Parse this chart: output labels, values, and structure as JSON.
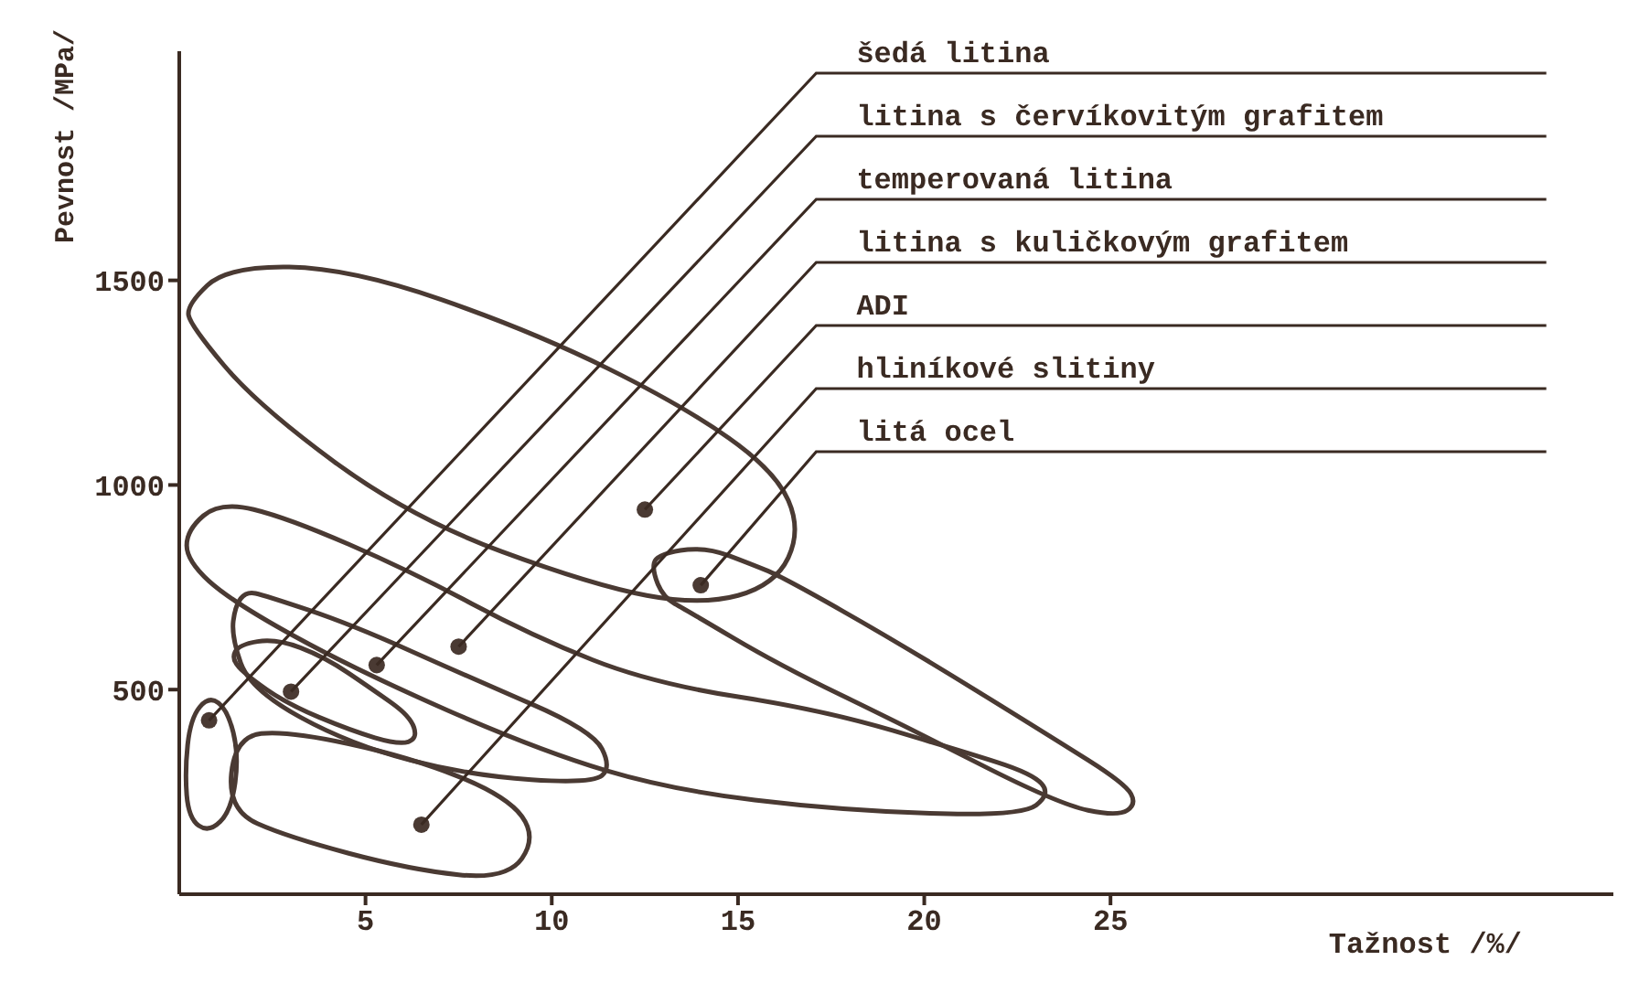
{
  "chart_data": {
    "type": "scatter",
    "xlabel": "Tažnost /%/",
    "ylabel": "Pevnost /MPa/",
    "xlim": [
      0,
      38.5
    ],
    "ylim": [
      0,
      2060
    ],
    "xticks": [
      5,
      10,
      15,
      20,
      25
    ],
    "yticks": [
      500,
      1000,
      1500
    ],
    "grid": false,
    "legend": false,
    "marker": "circle",
    "series": [
      {
        "color": "#4a3a33",
        "x": [
          0.8,
          3,
          5.3,
          7.5,
          12.5,
          6.5,
          14
        ],
        "values": [
          425,
          495,
          560,
          605,
          940,
          170,
          755
        ]
      }
    ],
    "annotations": [
      {
        "text": "šedá litina",
        "x": 0.8,
        "y": 425
      },
      {
        "text": "litina s červíkovitým grafitem",
        "x": 3,
        "y": 495
      },
      {
        "text": "temperovaná litina",
        "x": 5.3,
        "y": 560
      },
      {
        "text": "litina s kuličkovým grafitem",
        "x": 7.5,
        "y": 605
      },
      {
        "text": "ADI",
        "x": 12.5,
        "y": 940
      },
      {
        "text": "hliníkové slitiny",
        "x": 6.5,
        "y": 170
      },
      {
        "text": "litá ocel",
        "x": 14,
        "y": 755
      }
    ]
  }
}
